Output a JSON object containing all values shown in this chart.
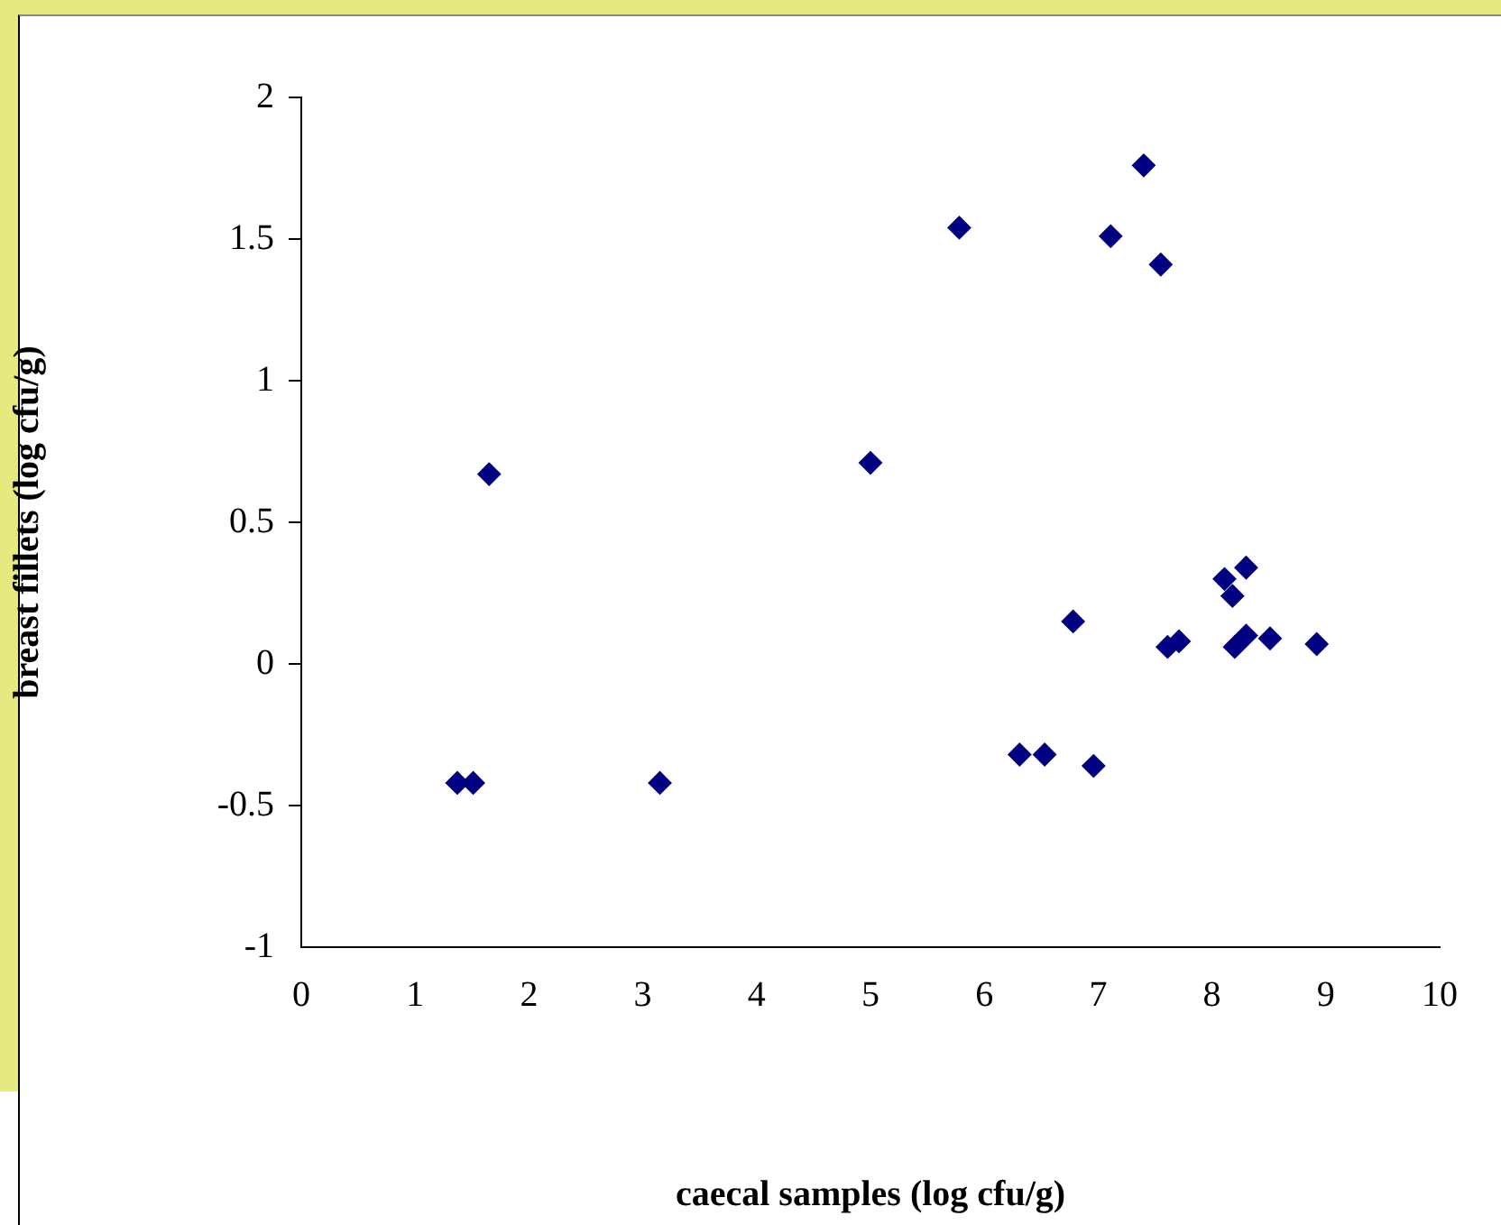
{
  "chart_data": {
    "type": "scatter",
    "xlabel": "caecal samples (log cfu/g)",
    "ylabel": "breast fillets (log cfu/g)",
    "x": [
      1.37,
      1.51,
      1.65,
      3.15,
      5.0,
      5.78,
      7.4,
      7.11,
      7.55,
      8.3,
      8.11,
      8.18,
      6.78,
      7.61,
      7.71,
      8.2,
      8.3,
      8.51,
      8.92,
      6.31,
      6.53,
      6.96
    ],
    "series": [
      {
        "color": "#000080",
        "values": [
          -0.42,
          -0.42,
          0.67,
          -0.42,
          0.71,
          1.54,
          1.76,
          1.51,
          1.41,
          0.34,
          0.3,
          0.24,
          0.15,
          0.06,
          0.08,
          0.06,
          0.1,
          0.09,
          0.07,
          -0.32,
          -0.32,
          -0.36
        ]
      }
    ],
    "xlim": [
      0,
      10
    ],
    "xticks": [
      0,
      1,
      2,
      3,
      4,
      5,
      6,
      7,
      8,
      9,
      10
    ],
    "ylim": [
      -1,
      2
    ],
    "yticks": [
      -1,
      -0.5,
      0,
      0.5,
      1,
      1.5,
      2
    ],
    "grid": false,
    "legend": false,
    "marker": "diamond"
  }
}
